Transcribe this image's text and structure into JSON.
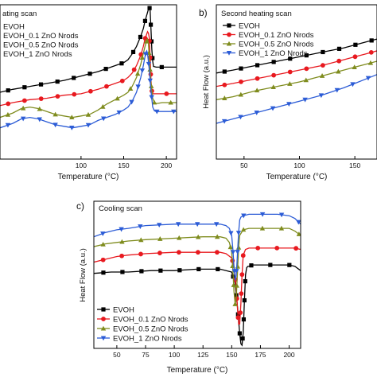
{
  "figure": {
    "panels": [
      {
        "letter": "",
        "scan_label": "ating scan"
      },
      {
        "letter": "b)",
        "scan_label": "Second heating scan"
      },
      {
        "letter": "c)",
        "scan_label": "Cooling scan"
      }
    ]
  },
  "chart_data": [
    {
      "type": "line",
      "panel": "a",
      "title": "Heating scan",
      "title_visible": "ating scan",
      "xlabel": "Temperature (°C)",
      "ylabel": "",
      "xlim": [
        5,
        212
      ],
      "ylim": [
        0,
        10
      ],
      "x_ticks": [
        100,
        150,
        200
      ],
      "y_ticks": [],
      "legend": "top-left",
      "series": [
        {
          "name": "EVOH",
          "label_visible": "EVOH",
          "color": "#000000",
          "marker": "square",
          "x": [
            5,
            20,
            40,
            60,
            80,
            100,
            120,
            130,
            140,
            150,
            155,
            160,
            165,
            170,
            173,
            175,
            178,
            180,
            181,
            182,
            183,
            184,
            185,
            188,
            190,
            195,
            200,
            205,
            212
          ],
          "y": [
            4.3,
            4.5,
            4.7,
            4.9,
            5.1,
            5.4,
            5.7,
            5.9,
            6.1,
            6.3,
            6.5,
            6.9,
            7.4,
            8.1,
            8.6,
            9.1,
            9.7,
            10.1,
            9.8,
            8.6,
            7.2,
            6.4,
            6.05,
            6.0,
            6.0,
            6.0,
            6.0,
            6.0,
            6.0
          ]
        },
        {
          "name": "EVOH_0.1 ZnO Nrods",
          "label_visible": "EVOH_0.1 ZnO Nrods",
          "color": "#e8191f",
          "marker": "circle",
          "x": [
            5,
            20,
            40,
            60,
            80,
            100,
            120,
            130,
            140,
            150,
            155,
            160,
            165,
            170,
            173,
            175,
            178,
            179,
            180,
            181,
            182,
            183,
            184,
            185,
            188,
            190,
            195,
            200,
            205,
            212
          ],
          "y": [
            3.4,
            3.6,
            3.8,
            3.9,
            4.1,
            4.2,
            4.5,
            4.7,
            4.9,
            5.1,
            5.3,
            5.6,
            6.1,
            6.8,
            7.4,
            7.9,
            8.4,
            8.3,
            8.0,
            6.6,
            5.1,
            4.4,
            4.2,
            4.2,
            4.2,
            4.2,
            4.2,
            4.2,
            4.2,
            4.2
          ]
        },
        {
          "name": "EVOH_0.5 ZnO Nrods",
          "label_visible": "EVOH_0.5 ZnO Nrods",
          "color": "#7f8c1e",
          "marker": "triangle-up",
          "x": [
            5,
            20,
            30,
            40,
            50,
            60,
            70,
            80,
            90,
            100,
            110,
            120,
            130,
            140,
            150,
            155,
            160,
            165,
            170,
            175,
            177,
            178,
            179,
            180,
            182,
            184,
            186,
            188,
            190,
            195,
            200,
            205,
            212
          ],
          "y": [
            2.6,
            2.9,
            3.2,
            3.3,
            3.2,
            3.0,
            2.8,
            2.7,
            2.6,
            2.7,
            2.8,
            3.1,
            3.5,
            3.8,
            4.1,
            4.3,
            4.7,
            5.3,
            6.2,
            7.4,
            7.8,
            7.9,
            7.6,
            6.6,
            4.9,
            3.9,
            3.6,
            3.55,
            3.55,
            3.6,
            3.6,
            3.6,
            3.6
          ]
        },
        {
          "name": "EVOH_1 ZnO Nrods",
          "label_visible": "EVOH_1 ZnO Nrods",
          "color": "#2c5cd6",
          "marker": "triangle-down",
          "x": [
            5,
            20,
            30,
            40,
            50,
            60,
            70,
            80,
            90,
            100,
            110,
            120,
            130,
            140,
            150,
            155,
            160,
            165,
            170,
            173,
            175,
            176,
            177,
            178,
            179,
            180,
            182,
            184,
            186,
            188,
            190,
            195,
            200,
            205,
            212
          ],
          "y": [
            1.9,
            2.2,
            2.5,
            2.6,
            2.5,
            2.3,
            2.1,
            2.0,
            1.9,
            2.0,
            2.1,
            2.4,
            2.6,
            2.8,
            3.1,
            3.3,
            3.7,
            4.3,
            5.3,
            6.1,
            6.7,
            7.0,
            7.1,
            6.9,
            6.4,
            5.8,
            4.4,
            3.3,
            3.05,
            3.0,
            3.0,
            3.0,
            3.0,
            3.0,
            3.0
          ]
        }
      ]
    },
    {
      "type": "line",
      "panel": "b",
      "title": "Second heating scan",
      "xlabel": "Temperature (°C)",
      "ylabel": "Heat Flow (a.u.)",
      "xlim": [
        25,
        170
      ],
      "ylim": [
        0,
        10
      ],
      "x_ticks": [
        50,
        100,
        150
      ],
      "y_ticks": [],
      "legend": "top-left",
      "series": [
        {
          "name": "EVOH",
          "color": "#000000",
          "marker": "square",
          "x": [
            25,
            40,
            60,
            80,
            100,
            120,
            140,
            150,
            160,
            170
          ],
          "y": [
            5.6,
            5.8,
            6.1,
            6.4,
            6.7,
            7.0,
            7.3,
            7.5,
            7.7,
            7.9
          ]
        },
        {
          "name": "EVOH_0.1 ZnO Nrods",
          "color": "#e8191f",
          "marker": "circle",
          "x": [
            25,
            40,
            60,
            80,
            100,
            120,
            140,
            150,
            160,
            170
          ],
          "y": [
            4.7,
            4.9,
            5.2,
            5.5,
            5.8,
            6.1,
            6.5,
            6.7,
            6.9,
            7.1
          ]
        },
        {
          "name": "EVOH_0.5 ZnO Nrods",
          "color": "#7f8c1e",
          "marker": "triangle-up",
          "x": [
            25,
            40,
            60,
            80,
            100,
            120,
            140,
            150,
            160,
            170
          ],
          "y": [
            3.8,
            4.0,
            4.4,
            4.7,
            5.0,
            5.4,
            5.8,
            6.0,
            6.2,
            6.4
          ]
        },
        {
          "name": "EVOH_1 ZnO Nrods",
          "color": "#2c5cd6",
          "marker": "triangle-down",
          "x": [
            25,
            40,
            60,
            80,
            100,
            120,
            140,
            150,
            160,
            170
          ],
          "y": [
            2.2,
            2.5,
            2.9,
            3.3,
            3.7,
            4.1,
            4.6,
            4.9,
            5.2,
            5.5
          ]
        }
      ]
    },
    {
      "type": "line",
      "panel": "c",
      "title": "Cooling scan",
      "xlabel": "Temperature (°C)",
      "ylabel": "Heat Flow (a.u.)",
      "xlim": [
        30,
        210
      ],
      "ylim": [
        0,
        10
      ],
      "x_ticks": [
        50,
        75,
        100,
        125,
        150,
        175,
        200
      ],
      "y_ticks": [],
      "legend": "bottom-left",
      "series": [
        {
          "name": "EVOH",
          "color": "#000000",
          "marker": "square",
          "x": [
            30,
            45,
            60,
            80,
            100,
            120,
            140,
            150,
            153,
            155,
            157,
            158,
            159,
            160,
            161,
            162,
            163,
            164,
            165,
            168,
            170,
            175,
            180,
            190,
            200,
            205,
            210
          ],
          "y": [
            5.1,
            5.2,
            5.2,
            5.3,
            5.3,
            5.4,
            5.4,
            5.2,
            4.4,
            2.7,
            0.8,
            0.1,
            0.0,
            0.9,
            3.0,
            5.0,
            5.5,
            5.6,
            5.6,
            5.7,
            5.7,
            5.7,
            5.7,
            5.7,
            5.7,
            5.6,
            5.3
          ]
        },
        {
          "name": "EVOH_0.1 ZnO Nrods",
          "color": "#e8191f",
          "marker": "circle",
          "x": [
            30,
            40,
            50,
            60,
            75,
            100,
            125,
            140,
            145,
            150,
            152,
            154,
            155,
            156,
            157,
            158,
            159,
            160,
            162,
            165,
            170,
            175,
            180,
            190,
            200,
            205,
            210
          ],
          "y": [
            5.9,
            6.1,
            6.3,
            6.4,
            6.5,
            6.6,
            6.6,
            6.6,
            6.5,
            6.2,
            5.6,
            4.0,
            2.6,
            1.5,
            1.5,
            3.0,
            5.0,
            6.4,
            6.8,
            6.9,
            6.9,
            6.9,
            6.9,
            6.9,
            6.9,
            6.9,
            6.8
          ]
        },
        {
          "name": "EVOH_0.5 ZnO Nrods",
          "color": "#7f8c1e",
          "marker": "triangle-up",
          "x": [
            30,
            40,
            50,
            60,
            75,
            100,
            125,
            140,
            145,
            148,
            150,
            151,
            152,
            153,
            154,
            155,
            156,
            157,
            160,
            165,
            170,
            175,
            180,
            190,
            200,
            205,
            210
          ],
          "y": [
            7.0,
            7.2,
            7.3,
            7.4,
            7.5,
            7.6,
            7.7,
            7.7,
            7.6,
            7.3,
            6.6,
            5.3,
            3.8,
            2.9,
            3.4,
            5.2,
            6.9,
            7.8,
            8.2,
            8.3,
            8.3,
            8.3,
            8.3,
            8.3,
            8.3,
            8.1,
            7.8
          ]
        },
        {
          "name": "EVOH_1 ZnO Nrods",
          "color": "#2c5cd6",
          "marker": "triangle-down",
          "x": [
            30,
            40,
            50,
            60,
            75,
            100,
            125,
            140,
            145,
            148,
            150,
            151,
            152,
            153,
            154,
            155,
            156,
            157,
            158,
            160,
            165,
            170,
            175,
            180,
            190,
            200,
            205,
            210
          ],
          "y": [
            7.7,
            8.0,
            8.2,
            8.3,
            8.5,
            8.6,
            8.6,
            8.6,
            8.5,
            8.3,
            7.8,
            6.8,
            5.6,
            4.6,
            5.0,
            6.5,
            8.0,
            8.9,
            9.1,
            9.2,
            9.3,
            9.3,
            9.3,
            9.3,
            9.3,
            9.2,
            9.0,
            8.6
          ]
        }
      ]
    }
  ]
}
